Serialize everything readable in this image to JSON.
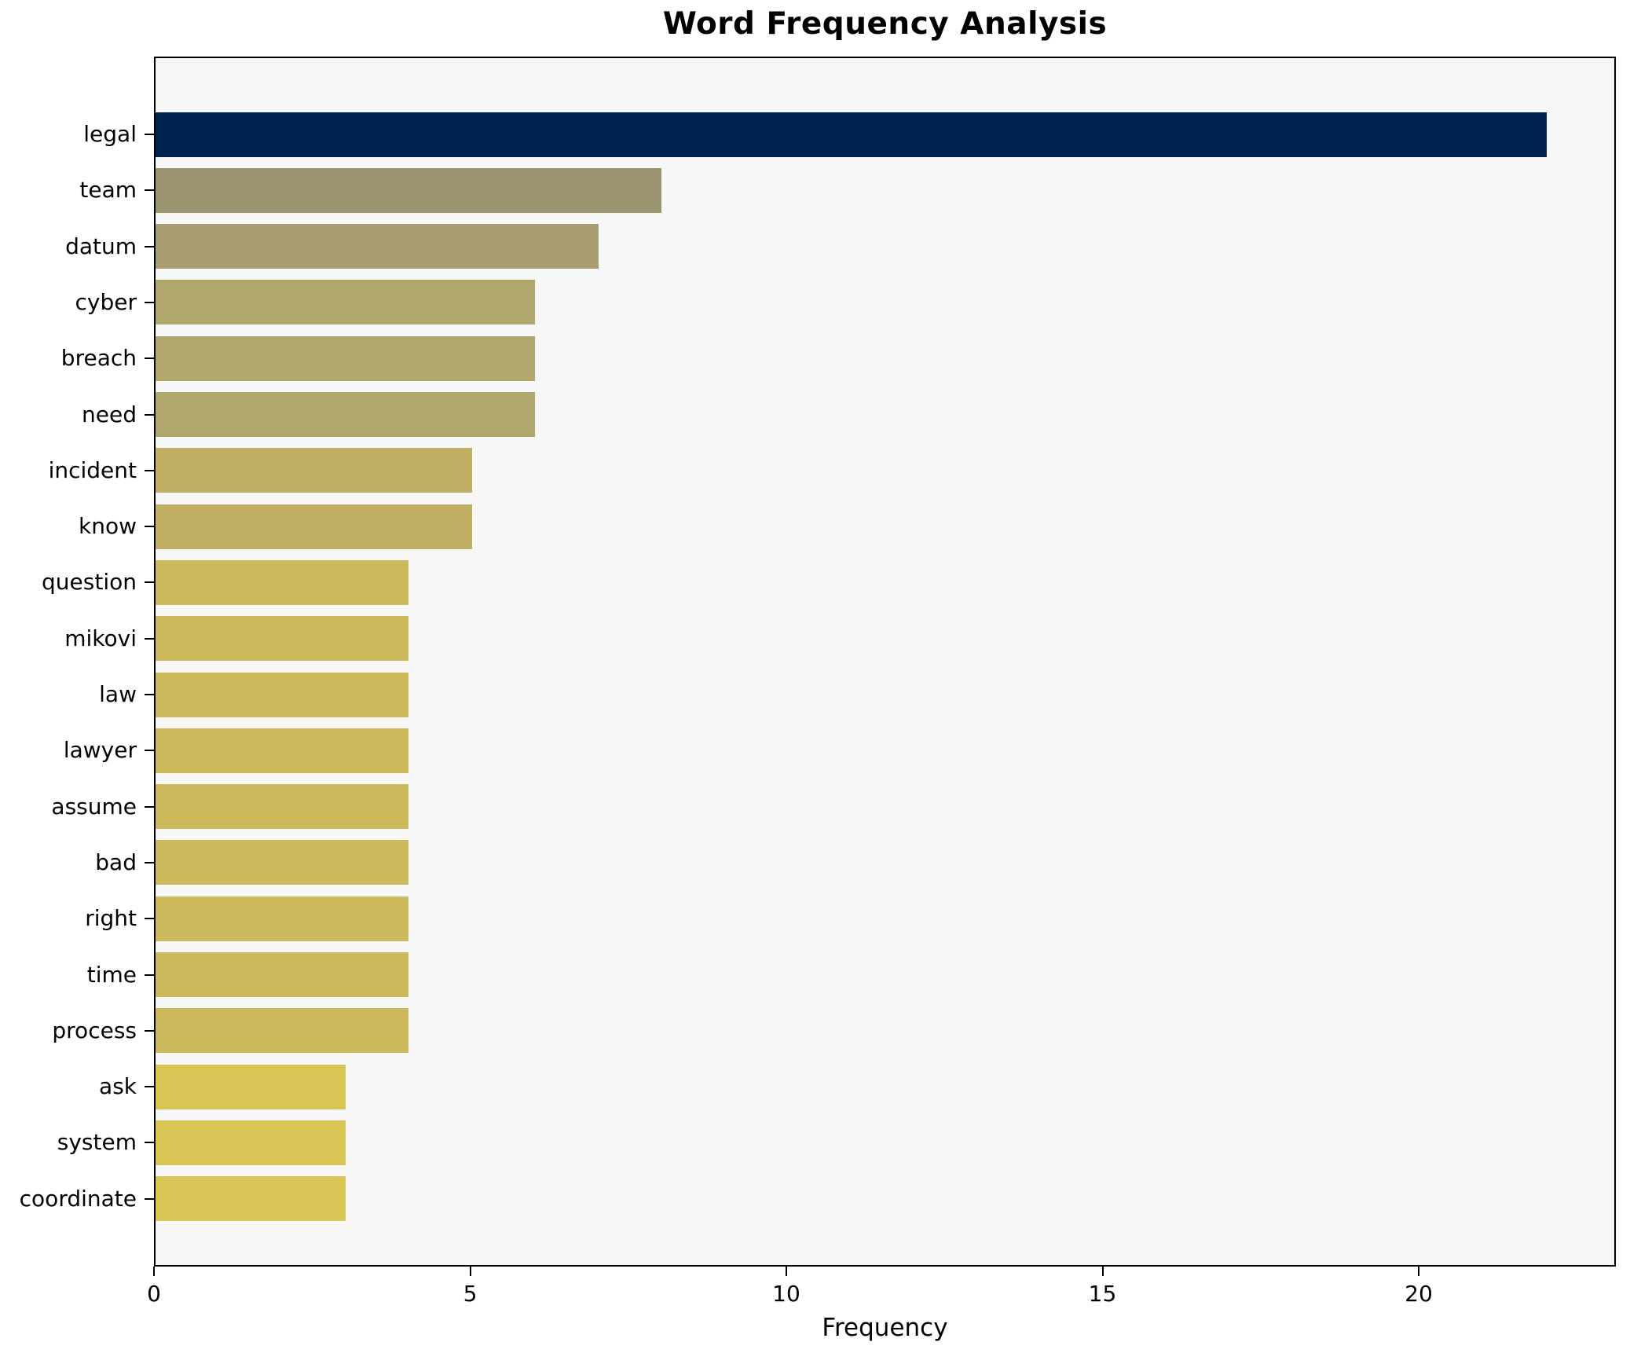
{
  "chart_data": {
    "type": "bar",
    "orientation": "horizontal",
    "title": "Word Frequency Analysis",
    "xlabel": "Frequency",
    "ylabel": "",
    "xlim": [
      0,
      23.1
    ],
    "xticks": [
      0,
      5,
      10,
      15,
      20
    ],
    "grid": false,
    "legend": "none",
    "plot_background": "#f7f7f7",
    "figure_background": "#ffffff",
    "spine_color": "#000000",
    "categories": [
      "legal",
      "team",
      "datum",
      "cyber",
      "breach",
      "need",
      "incident",
      "know",
      "question",
      "mikovi",
      "law",
      "lawyer",
      "assume",
      "bad",
      "right",
      "time",
      "process",
      "ask",
      "system",
      "coordinate"
    ],
    "values": [
      22,
      8,
      7,
      6,
      6,
      6,
      5,
      5,
      4,
      4,
      4,
      4,
      4,
      4,
      4,
      4,
      4,
      3,
      3,
      3
    ],
    "bar_colors": [
      "#00224e",
      "#9b9470",
      "#a89e72",
      "#b1a66b",
      "#b1a66b",
      "#b1a66b",
      "#c0af62",
      "#c0af62",
      "#cbb95c",
      "#cbb95c",
      "#cbb95c",
      "#cbb95c",
      "#cbb95c",
      "#cbb95c",
      "#cbb95c",
      "#cbb95c",
      "#cbb95c",
      "#d9c554",
      "#d9c554",
      "#d9c554"
    ]
  }
}
